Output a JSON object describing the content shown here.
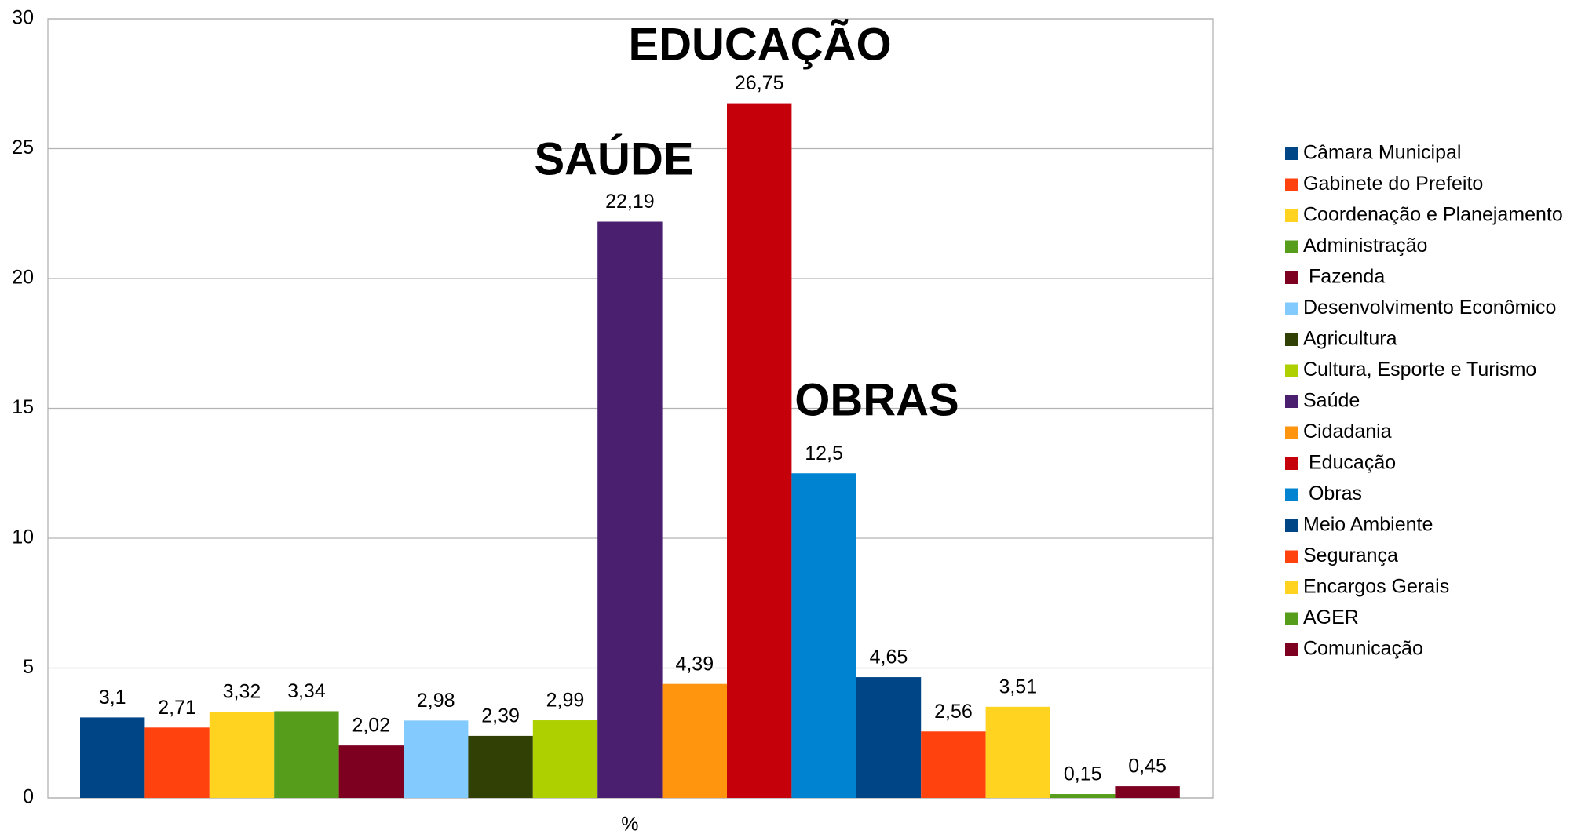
{
  "chart_data": {
    "type": "bar",
    "categories": [
      "%"
    ],
    "series": [
      {
        "name": "Câmara Municipal",
        "color": "#004586",
        "values": [
          3.1
        ],
        "value_labels": [
          "3,1"
        ]
      },
      {
        "name": "Gabinete do Prefeito",
        "color": "#ff420e",
        "values": [
          2.71
        ],
        "value_labels": [
          "2,71"
        ]
      },
      {
        "name": "Coordenação e Planejamento",
        "color": "#ffd320",
        "values": [
          3.32
        ],
        "value_labels": [
          "3,32"
        ]
      },
      {
        "name": "Administração",
        "color": "#579d1c",
        "values": [
          3.34
        ],
        "value_labels": [
          "3,34"
        ]
      },
      {
        "name": " Fazenda",
        "color": "#7e0021",
        "values": [
          2.02
        ],
        "value_labels": [
          "2,02"
        ]
      },
      {
        "name": "Desenvolvimento Econômico",
        "color": "#83caff",
        "values": [
          2.98
        ],
        "value_labels": [
          "2,98"
        ]
      },
      {
        "name": "Agricultura",
        "color": "#314004",
        "values": [
          2.39
        ],
        "value_labels": [
          "2,39"
        ]
      },
      {
        "name": "Cultura, Esporte e Turismo",
        "color": "#aecf00",
        "values": [
          2.99
        ],
        "value_labels": [
          "2,99"
        ]
      },
      {
        "name": "Saúde",
        "color": "#4b1f6f",
        "values": [
          22.19
        ],
        "value_labels": [
          "22,19"
        ]
      },
      {
        "name": "Cidadania",
        "color": "#ff950e",
        "values": [
          4.39
        ],
        "value_labels": [
          "4,39"
        ]
      },
      {
        "name": " Educação",
        "color": "#c5000b",
        "values": [
          26.75
        ],
        "value_labels": [
          "26,75"
        ]
      },
      {
        "name": " Obras",
        "color": "#0084d1",
        "values": [
          12.5
        ],
        "value_labels": [
          "12,5"
        ]
      },
      {
        "name": "Meio Ambiente",
        "color": "#004586",
        "values": [
          4.65
        ],
        "value_labels": [
          "4,65"
        ]
      },
      {
        "name": "Segurança",
        "color": "#ff420e",
        "values": [
          2.56
        ],
        "value_labels": [
          "2,56"
        ]
      },
      {
        "name": "Encargos Gerais",
        "color": "#ffd320",
        "values": [
          3.51
        ],
        "value_labels": [
          "3,51"
        ]
      },
      {
        "name": "AGER",
        "color": "#579d1c",
        "values": [
          0.15
        ],
        "value_labels": [
          "0,15"
        ]
      },
      {
        "name": "Comunicação",
        "color": "#7e0021",
        "values": [
          0.45
        ],
        "value_labels": [
          "0,45"
        ]
      }
    ],
    "annotations": [
      "EDUCAÇÃO",
      "SAÚDE",
      "OBRAS"
    ],
    "ylim": [
      0,
      30
    ],
    "yticks": [
      0,
      5,
      10,
      15,
      20,
      25,
      30
    ],
    "grid": true,
    "legend": "right"
  }
}
